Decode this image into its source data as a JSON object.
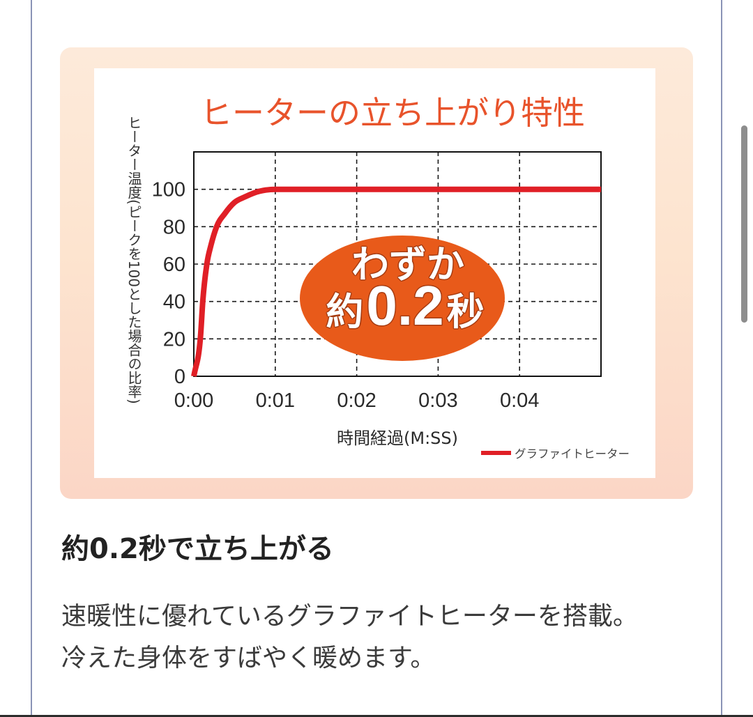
{
  "section": {
    "heading": "約0.2秒で立ち上がる",
    "description_lines": [
      "速暖性に優れているグラファイトヒーターを搭載。",
      "冷えた身体をすばやく暖めます。"
    ]
  },
  "chart_data": {
    "type": "line",
    "title": "ヒーターの立ち上がり特性",
    "title_color": "#e8532b",
    "xlabel": "時間経過(M:SS)",
    "ylabel": "ヒーター温度(ピークを100とした場合の比率)",
    "x_ticks": [
      "0:00",
      "0:01",
      "0:02",
      "0:03",
      "0:04"
    ],
    "xlim": [
      "0:00",
      "0:05"
    ],
    "y_ticks": [
      0,
      20,
      40,
      60,
      80,
      100
    ],
    "ylim": [
      0,
      120
    ],
    "grid": true,
    "legend_position": "bottom-right",
    "series": [
      {
        "name": "グラファイトヒーター",
        "color": "#e01f26",
        "points": [
          {
            "x": "0:00",
            "y": 0
          },
          {
            "x": "0:00.08",
            "y": 20
          },
          {
            "x": "0:00.11",
            "y": 40
          },
          {
            "x": "0:00.16",
            "y": 60
          },
          {
            "x": "0:00.21",
            "y": 70
          },
          {
            "x": "0:00.28",
            "y": 80
          },
          {
            "x": "0:00.38",
            "y": 87
          },
          {
            "x": "0:00.50",
            "y": 93
          },
          {
            "x": "0:00.63",
            "y": 96
          },
          {
            "x": "0:00.81",
            "y": 99
          },
          {
            "x": "0:01.00",
            "y": 100
          },
          {
            "x": "0:05.00",
            "y": 100
          }
        ]
      }
    ],
    "annotation": {
      "color": "#e85a1a",
      "line1": "わずか",
      "line2_prefix": "約",
      "line2_value": "0.2",
      "line2_suffix": "秒"
    }
  }
}
